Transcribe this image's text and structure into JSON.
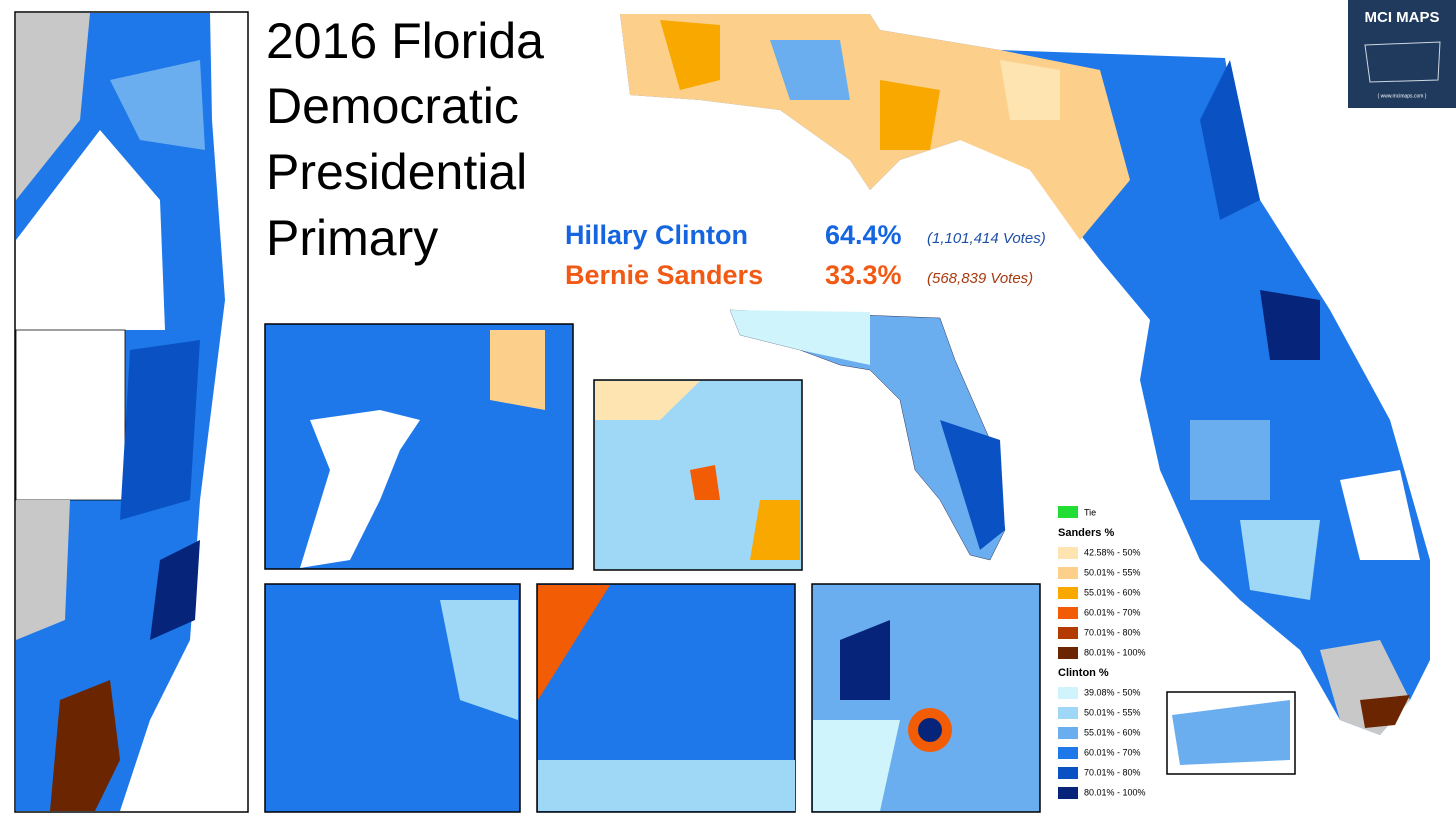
{
  "header": {
    "title_lines": [
      "2016 Florida",
      "Democratic",
      "Presidential",
      "Primary"
    ]
  },
  "results": [
    {
      "name": "Hillary Clinton",
      "percent": "64.4%",
      "votes": "(1,101,414  Votes)",
      "color": "#1565e0",
      "votes_color": "#1e4fa8"
    },
    {
      "name": "Bernie Sanders",
      "percent": "33.3%",
      "votes": "(568,839  Votes)",
      "color": "#f05a14",
      "votes_color": "#a83a10"
    }
  ],
  "legend": {
    "tie": {
      "label": "Tie",
      "color": "#22dd33"
    },
    "sanders_heading": "Sanders  %",
    "sanders": [
      {
        "label": "42.58% - 50%",
        "color": "#fde4b0"
      },
      {
        "label": "50.01% - 55%",
        "color": "#fcd08a"
      },
      {
        "label": "55.01% - 60%",
        "color": "#f9a800"
      },
      {
        "label": "60.01% - 70%",
        "color": "#f25c05"
      },
      {
        "label": "70.01% - 80%",
        "color": "#b33a00"
      },
      {
        "label": "80.01% - 100%",
        "color": "#6b2500"
      }
    ],
    "clinton_heading": "Clinton %",
    "clinton": [
      {
        "label": "39.08% - 50%",
        "color": "#d0f4fb"
      },
      {
        "label": "50.01% - 55%",
        "color": "#9fd8f7"
      },
      {
        "label": "55.01% - 60%",
        "color": "#6aaef0"
      },
      {
        "label": "60.01% - 70%",
        "color": "#1e78ea"
      },
      {
        "label": "70.01% - 80%",
        "color": "#0a52c4"
      },
      {
        "label": "80.01% - 100%",
        "color": "#06257a"
      }
    ]
  },
  "logo": {
    "title": "MCI MAPS",
    "url": "{ www.mcimaps.com }"
  }
}
